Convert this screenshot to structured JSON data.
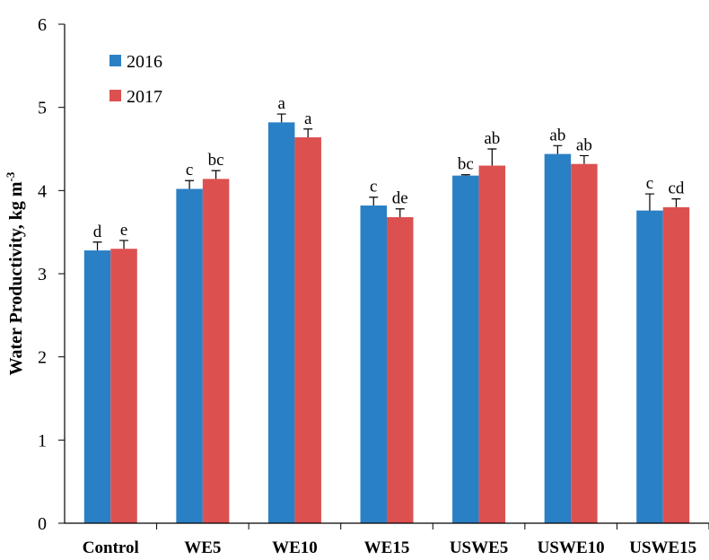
{
  "chart_data": {
    "type": "bar",
    "ylabel": "Water Productivity, kg m",
    "ylabel_superscript": "-3",
    "categories": [
      "Control",
      "WE5",
      "WE10",
      "WE15",
      "USWE5",
      "USWE10",
      "USWE15"
    ],
    "series": [
      {
        "name": "2016",
        "color": "#2a80c5",
        "values": [
          3.28,
          4.02,
          4.82,
          3.82,
          4.18,
          4.44,
          3.76
        ],
        "errors": [
          0.1,
          0.1,
          0.1,
          0.1,
          0.01,
          0.1,
          0.2
        ],
        "letters": [
          "d",
          "c",
          "a",
          "c",
          "bc",
          "ab",
          "c"
        ]
      },
      {
        "name": "2017",
        "color": "#dc5150",
        "values": [
          3.3,
          4.14,
          4.64,
          3.68,
          4.3,
          4.32,
          3.8
        ],
        "errors": [
          0.1,
          0.1,
          0.1,
          0.1,
          0.2,
          0.1,
          0.1
        ],
        "letters": [
          "e",
          "bc",
          "a",
          "de",
          "ab",
          "ab",
          "cd"
        ]
      }
    ],
    "ylim": [
      0,
      6
    ],
    "yticks": [
      0,
      1,
      2,
      3,
      4,
      5,
      6
    ],
    "legend": "upper left"
  }
}
